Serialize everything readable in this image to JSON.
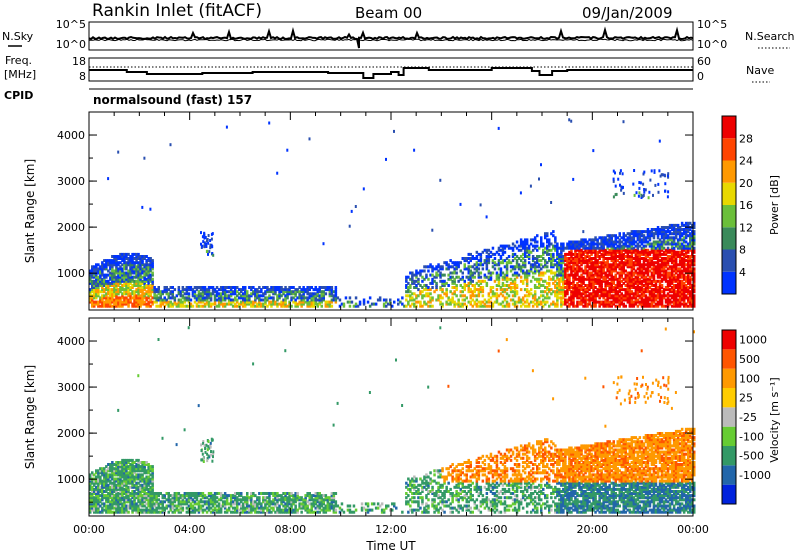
{
  "header": {
    "station": "Rankin Inlet (fitACF)",
    "beam": "Beam 00",
    "date": "09/Jan/2009"
  },
  "nsky_panel": {
    "label": "N.Sky",
    "left_ticks": [
      "10^5",
      "10^0"
    ],
    "right_ticks": [
      "10^5",
      "10^0"
    ],
    "right_label": "N.Search"
  },
  "freq_panel": {
    "label_line1": "Freq.",
    "label_line2": "[MHz]",
    "left_ticks": [
      "18",
      "8"
    ],
    "right_ticks": [
      "60",
      "0"
    ],
    "right_label": "Nave"
  },
  "cpid": {
    "label": "CPID",
    "value": "normalsound (fast) 157"
  },
  "colors": {
    "power_scale": [
      "#0033ff",
      "#2a4fb0",
      "#3a8a5a",
      "#6bbf3a",
      "#e8d800",
      "#ff9900",
      "#ff4400",
      "#ee0000"
    ],
    "velocity_scale": [
      "#ee0000",
      "#ff5500",
      "#ff9900",
      "#ffcc00",
      "#bbbbbb",
      "#66cc33",
      "#339966",
      "#2266aa",
      "#0022dd"
    ]
  },
  "chart_data": [
    {
      "type": "heatmap",
      "name": "power",
      "xlabel": "Time UT",
      "ylabel": "Slant Range [km]",
      "xlim": [
        0,
        24
      ],
      "ylim": [
        200,
        4500
      ],
      "x_ticks": [
        "00:00",
        "04:00",
        "08:00",
        "12:00",
        "16:00",
        "20:00",
        "00:00"
      ],
      "y_ticks": [
        "1000",
        "2000",
        "3000",
        "4000"
      ],
      "colorbar": {
        "label": "Power [dB]",
        "ticks": [
          "4",
          "8",
          "12",
          "16",
          "20",
          "24",
          "28"
        ],
        "range": [
          0,
          30
        ]
      }
    },
    {
      "type": "heatmap",
      "name": "velocity",
      "xlabel": "Time UT",
      "ylabel": "Slant Range [km]",
      "xlim": [
        0,
        24
      ],
      "ylim": [
        200,
        4500
      ],
      "x_ticks": [
        "00:00",
        "04:00",
        "08:00",
        "12:00",
        "16:00",
        "20:00",
        "00:00"
      ],
      "y_ticks": [
        "1000",
        "2000",
        "3000",
        "4000"
      ],
      "colorbar": {
        "label": "Velocity [m s⁻¹]",
        "ticks": [
          "1000",
          "500",
          "100",
          "25",
          "-25",
          "-100",
          "-500",
          "-1000"
        ],
        "range": [
          -1200,
          1200
        ]
      }
    }
  ]
}
